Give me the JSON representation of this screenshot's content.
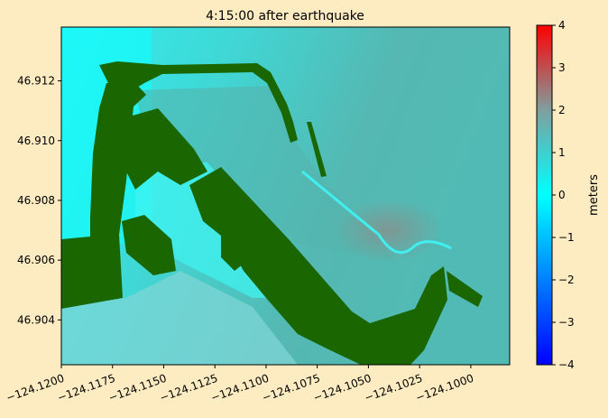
{
  "chart_data": {
    "type": "heatmap",
    "title": "4:15:00 after earthquake",
    "xlabel": "",
    "ylabel": "",
    "xlim": [
      -124.12,
      -124.0981
    ],
    "ylim": [
      46.9025,
      46.9138
    ],
    "x_ticks": [
      -124.12,
      -124.1175,
      -124.115,
      -124.1125,
      -124.11,
      -124.1075,
      -124.105,
      -124.1025,
      -124.1
    ],
    "x_tick_labels": [
      "−124.1200",
      "−124.1175",
      "−124.1150",
      "−124.1125",
      "−124.1100",
      "−124.1075",
      "−124.1050",
      "−124.1025",
      "−124.1000"
    ],
    "y_ticks": [
      46.904,
      46.906,
      46.908,
      46.91,
      46.912
    ],
    "y_tick_labels": [
      "46.904",
      "46.906",
      "46.908",
      "46.910",
      "46.912"
    ],
    "grid": false,
    "colorbar": {
      "label": "meters",
      "range": [
        -4,
        4
      ],
      "ticks": [
        -4,
        -3,
        -2,
        -1,
        0,
        1,
        2,
        3,
        4
      ],
      "tick_labels": [
        "−4",
        "−3",
        "−2",
        "−1",
        "0",
        "1",
        "2",
        "3",
        "4"
      ],
      "colormap_stops": [
        {
          "value": -4,
          "color": "#0000ff"
        },
        {
          "value": 0,
          "color": "#00ffff"
        },
        {
          "value": 2,
          "color": "#7f9f9f"
        },
        {
          "value": 4,
          "color": "#ff0000"
        }
      ]
    },
    "colors": {
      "land": "#1a6600",
      "background": "#fdebc1"
    },
    "description_values": {
      "water_surface_range_shown": [
        0,
        1.5
      ]
    }
  }
}
